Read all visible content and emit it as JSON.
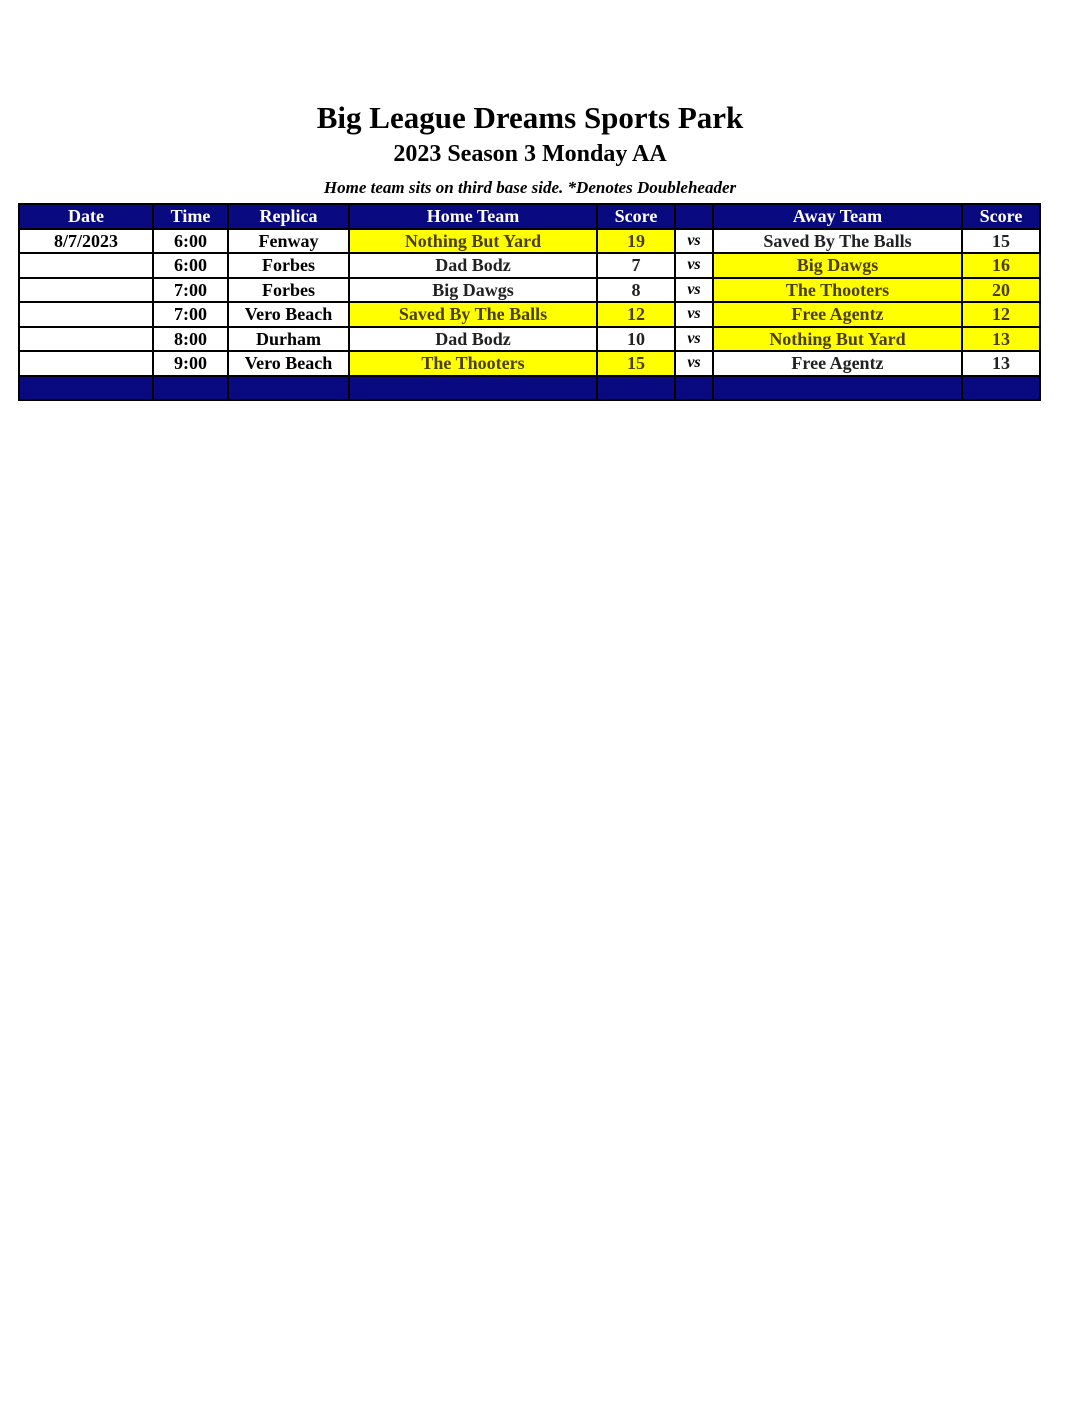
{
  "title": "Big League Dreams Sports Park",
  "subtitle": "2023 Season 3 Monday AA",
  "note": "Home team sits on third base side.  *Denotes Doubleheader",
  "colors": {
    "header_bg": "#0a0a80",
    "winner_highlight": "#ffff00"
  },
  "table": {
    "headers": [
      "Date",
      "Time",
      "Replica",
      "Home Team",
      "Score",
      "",
      "Away Team",
      "Score"
    ],
    "rows": [
      {
        "date": "8/7/2023",
        "time": "6:00",
        "replica": "Fenway",
        "home": "Nothing But Yard",
        "home_score": "19",
        "vs": "vs",
        "away": "Saved By The Balls",
        "away_score": "15",
        "home_win": true,
        "away_win": false
      },
      {
        "date": "",
        "time": "6:00",
        "replica": "Forbes",
        "home": "Dad Bodz",
        "home_score": "7",
        "vs": "vs",
        "away": "Big Dawgs",
        "away_score": "16",
        "home_win": false,
        "away_win": true
      },
      {
        "date": "",
        "time": "7:00",
        "replica": "Forbes",
        "home": "Big Dawgs",
        "home_score": "8",
        "vs": "vs",
        "away": "The Thooters",
        "away_score": "20",
        "home_win": false,
        "away_win": true
      },
      {
        "date": "",
        "time": "7:00",
        "replica": "Vero Beach",
        "home": "Saved By The Balls",
        "home_score": "12",
        "vs": "vs",
        "away": "Free Agentz",
        "away_score": "12",
        "home_win": true,
        "away_win": true
      },
      {
        "date": "",
        "time": "8:00",
        "replica": "Durham",
        "home": "Dad Bodz",
        "home_score": "10",
        "vs": "vs",
        "away": "Nothing But Yard",
        "away_score": "13",
        "home_win": false,
        "away_win": true
      },
      {
        "date": "",
        "time": "9:00",
        "replica": "Vero Beach",
        "home": "The Thooters",
        "home_score": "15",
        "vs": "vs",
        "away": "Free Agentz",
        "away_score": "13",
        "home_win": true,
        "away_win": false
      }
    ]
  }
}
